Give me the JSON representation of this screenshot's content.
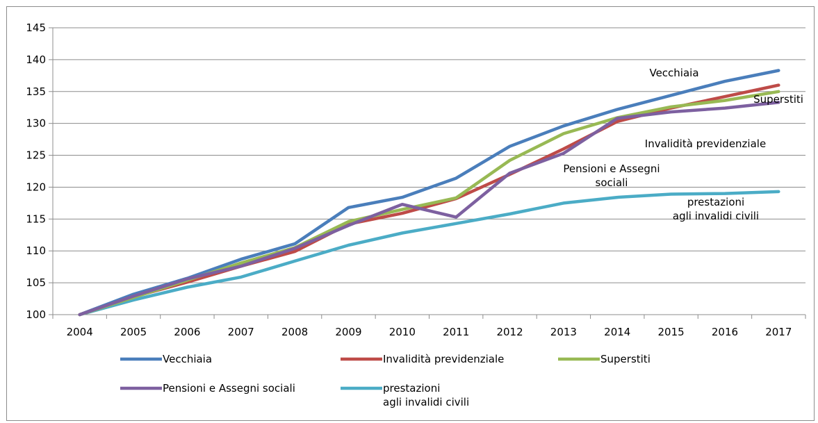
{
  "chart_data": {
    "type": "line",
    "title": "",
    "xlabel": "",
    "ylabel": "",
    "ylim": [
      100,
      145
    ],
    "yticks": [
      100,
      105,
      110,
      115,
      120,
      125,
      130,
      135,
      140,
      145
    ],
    "grid": "horizontal",
    "legend_position": "bottom",
    "categories": [
      "2004",
      "2005",
      "2006",
      "2007",
      "2008",
      "2009",
      "2010",
      "2011",
      "2012",
      "2013",
      "2014",
      "2015",
      "2016",
      "2017"
    ],
    "series": [
      {
        "name": "Vecchiaia",
        "color": "#4a7ebb",
        "values": [
          100,
          103.2,
          105.7,
          108.7,
          111.1,
          116.8,
          118.4,
          121.4,
          126.4,
          129.6,
          132.2,
          134.4,
          136.6,
          138.3
        ]
      },
      {
        "name": "Invalidità previdenziale",
        "color": "#be4b48",
        "values": [
          100,
          102.8,
          105.1,
          107.6,
          109.9,
          114.2,
          115.9,
          118.2,
          122.0,
          126.0,
          130.3,
          132.4,
          134.2,
          136.0
        ]
      },
      {
        "name": "Superstiti",
        "color": "#98b954",
        "values": [
          100,
          102.7,
          105.4,
          108.1,
          110.5,
          114.6,
          116.5,
          118.3,
          124.2,
          128.4,
          130.9,
          132.6,
          133.6,
          135.0
        ]
      },
      {
        "name": "Pensioni e Assegni sociali",
        "color": "#7d60a0",
        "values": [
          100,
          102.9,
          105.6,
          107.6,
          110.4,
          114.0,
          117.3,
          115.3,
          122.2,
          125.3,
          130.8,
          131.8,
          132.4,
          133.3
        ]
      },
      {
        "name": "prestazioni agli invalidi civili",
        "color": "#4bacc6",
        "values": [
          100,
          102.3,
          104.3,
          105.9,
          108.4,
          110.9,
          112.8,
          114.3,
          115.8,
          117.5,
          118.4,
          118.9,
          119.0,
          119.3
        ]
      }
    ],
    "annotations": [
      {
        "lines": [
          "Vecchiaia"
        ]
      },
      {
        "lines": [
          "Superstiti"
        ]
      },
      {
        "lines": [
          "Invalidità previdenziale"
        ]
      },
      {
        "lines": [
          "Pensioni e Assegni",
          "sociali"
        ]
      },
      {
        "lines": [
          "prestazioni",
          "agli invalidi civili"
        ]
      }
    ],
    "legend": [
      {
        "lines": [
          "Vecchiaia"
        ],
        "color": "#4a7ebb"
      },
      {
        "lines": [
          "Invalidità previdenziale"
        ],
        "color": "#be4b48"
      },
      {
        "lines": [
          "Superstiti"
        ],
        "color": "#98b954"
      },
      {
        "lines": [
          "Pensioni e Assegni sociali"
        ],
        "color": "#7d60a0"
      },
      {
        "lines": [
          "prestazioni",
          "agli invalidi civili"
        ],
        "color": "#4bacc6"
      }
    ]
  }
}
